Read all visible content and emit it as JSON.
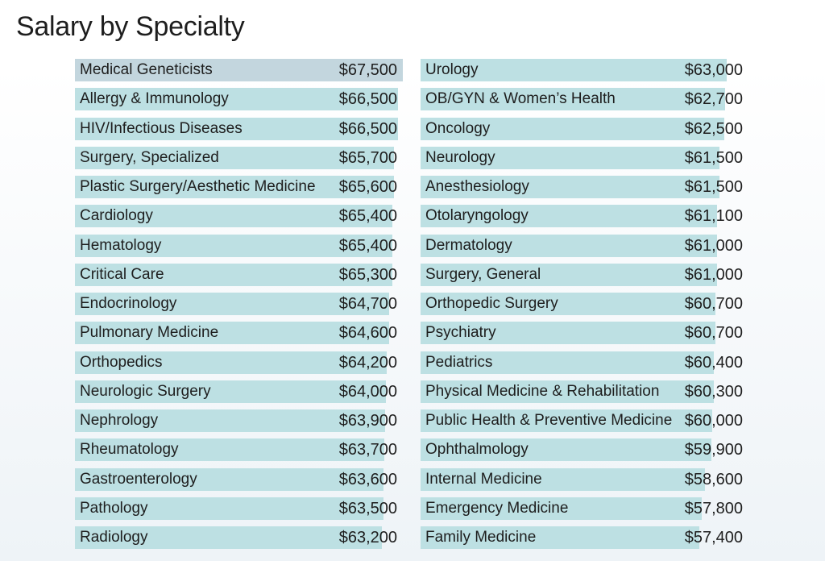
{
  "chart_data": {
    "type": "bar",
    "title": "Salary by Specialty",
    "orientation": "horizontal",
    "columns": [
      {
        "categories": [
          "Medical Geneticists",
          "Allergy & Immunology",
          "HIV/Infectious Diseases",
          "Surgery, Specialized",
          "Plastic Surgery/Aesthetic Medicine",
          "Cardiology",
          "Hematology",
          "Critical Care",
          "Endocrinology",
          "Pulmonary Medicine",
          "Orthopedics",
          "Neurologic Surgery",
          "Nephrology",
          "Rheumatology",
          "Gastroenterology",
          "Pathology",
          "Radiology"
        ],
        "values": [
          67500,
          66500,
          66500,
          65700,
          65600,
          65400,
          65400,
          65300,
          64700,
          64600,
          64200,
          64000,
          63900,
          63700,
          63600,
          63500,
          63200
        ],
        "labels": [
          "$67,500",
          "$66,500",
          "$66,500",
          "$65,700",
          "$65,600",
          "$65,400",
          "$65,400",
          "$65,300",
          "$64,700",
          "$64,600",
          "$64,200",
          "$64,000",
          "$63,900",
          "$63,700",
          "$63,600",
          "$63,500",
          "$63,200"
        ]
      },
      {
        "categories": [
          "Urology",
          "OB/GYN & Women’s Health",
          "Oncology",
          "Neurology",
          "Anesthesiology",
          "Otolaryngology",
          "Dermatology",
          "Surgery, General",
          "Orthopedic Surgery",
          "Psychiatry",
          "Pediatrics",
          "Physical Medicine & Rehabilitation",
          "Public Health & Preventive Medicine",
          "Ophthalmology",
          "Internal Medicine",
          "Emergency Medicine",
          "Family Medicine"
        ],
        "values": [
          63000,
          62700,
          62500,
          61500,
          61500,
          61100,
          61000,
          61000,
          60700,
          60700,
          60400,
          60300,
          60000,
          59900,
          58600,
          57800,
          57400
        ],
        "labels": [
          "$63,000",
          "$62,700",
          "$62,500",
          "$61,500",
          "$61,500",
          "$61,100",
          "$61,000",
          "$61,000",
          "$60,700",
          "$60,700",
          "$60,400",
          "$60,300",
          "$60,000",
          "$59,900",
          "$58,600",
          "$57,800",
          "$57,400"
        ]
      }
    ],
    "xlabel": "",
    "ylabel": "",
    "xlim": [
      0,
      67500
    ],
    "colors": {
      "bar": "#bde0e3",
      "highlight": "#c3d6de"
    }
  }
}
